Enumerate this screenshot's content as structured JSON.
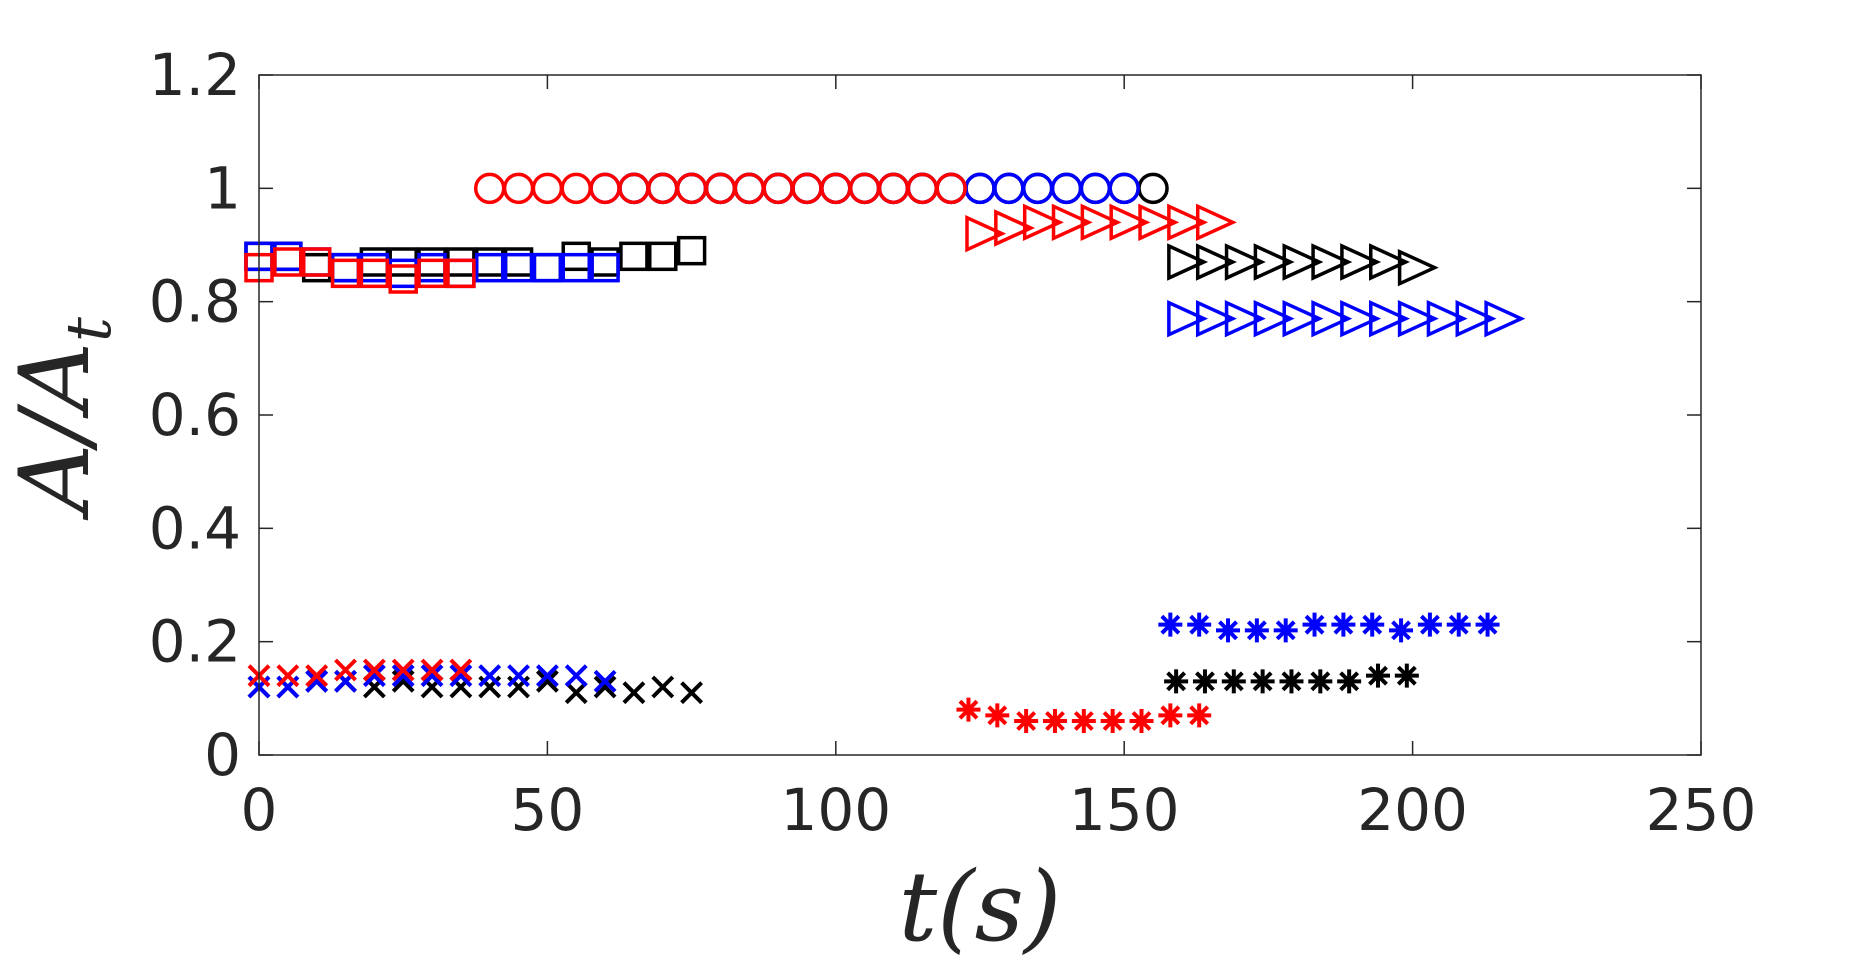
{
  "chart_data": {
    "type": "scatter",
    "title": "",
    "xlabel": "t(s)",
    "ylabel": "A/A",
    "ylabel_subscript": "t",
    "xlim": [
      0,
      250
    ],
    "ylim": [
      0,
      1.2
    ],
    "xticks": [
      0,
      50,
      100,
      150,
      200,
      250
    ],
    "xtick_labels": [
      "0",
      "50",
      "100",
      "150",
      "200",
      "250"
    ],
    "yticks": [
      0,
      0.2,
      0.4,
      0.6,
      0.8,
      1.0,
      1.2
    ],
    "ytick_labels": [
      "0",
      "0.2",
      "0.4",
      "0.6",
      "0.8",
      "1",
      "1.2"
    ],
    "grid": false,
    "colors": {
      "black": "#000000",
      "blue": "#0000ff",
      "red": "#ff0000",
      "axis": "#262626"
    },
    "series": [
      {
        "name": "square-black",
        "marker": "square",
        "color": "#000000",
        "x": [
          0,
          5,
          10,
          15,
          20,
          25,
          30,
          35,
          40,
          45,
          50,
          55,
          60,
          65,
          70,
          75
        ],
        "y": [
          0.88,
          0.88,
          0.86,
          0.86,
          0.87,
          0.87,
          0.87,
          0.87,
          0.87,
          0.87,
          0.86,
          0.88,
          0.87,
          0.88,
          0.88,
          0.89
        ]
      },
      {
        "name": "square-blue",
        "marker": "square",
        "color": "#0000ff",
        "x": [
          0,
          5,
          10,
          15,
          20,
          25,
          30,
          35,
          40,
          45,
          50,
          55,
          60
        ],
        "y": [
          0.88,
          0.88,
          0.87,
          0.86,
          0.86,
          0.85,
          0.86,
          0.85,
          0.86,
          0.86,
          0.86,
          0.86,
          0.86
        ]
      },
      {
        "name": "square-red",
        "marker": "square",
        "color": "#ff0000",
        "x": [
          0,
          5,
          10,
          15,
          20,
          25,
          30,
          35
        ],
        "y": [
          0.86,
          0.87,
          0.87,
          0.85,
          0.85,
          0.84,
          0.85,
          0.85
        ]
      },
      {
        "name": "x-black",
        "marker": "x",
        "color": "#000000",
        "x": [
          0,
          5,
          10,
          15,
          20,
          25,
          30,
          35,
          40,
          45,
          50,
          55,
          60,
          65,
          70,
          75
        ],
        "y": [
          0.12,
          0.12,
          0.13,
          0.13,
          0.12,
          0.13,
          0.12,
          0.12,
          0.12,
          0.12,
          0.13,
          0.11,
          0.12,
          0.11,
          0.12,
          0.11
        ]
      },
      {
        "name": "x-blue",
        "marker": "x",
        "color": "#0000ff",
        "x": [
          0,
          5,
          10,
          15,
          20,
          25,
          30,
          35,
          40,
          45,
          50,
          55,
          60
        ],
        "y": [
          0.12,
          0.12,
          0.13,
          0.13,
          0.14,
          0.14,
          0.14,
          0.14,
          0.14,
          0.14,
          0.14,
          0.14,
          0.13
        ]
      },
      {
        "name": "x-red",
        "marker": "x",
        "color": "#ff0000",
        "x": [
          0,
          5,
          10,
          15,
          20,
          25,
          30,
          35
        ],
        "y": [
          0.14,
          0.14,
          0.14,
          0.15,
          0.15,
          0.15,
          0.15,
          0.15
        ]
      },
      {
        "name": "circle-black",
        "marker": "circle",
        "color": "#000000",
        "x": [
          65,
          70,
          75,
          80,
          85,
          90,
          95,
          100,
          105,
          110,
          115,
          120,
          125,
          130,
          135,
          140,
          145,
          150,
          155
        ],
        "y": [
          1,
          1,
          1,
          1,
          1,
          1,
          1,
          1,
          1,
          1,
          1,
          1,
          1,
          1,
          1,
          1,
          1,
          1,
          1
        ]
      },
      {
        "name": "circle-blue",
        "marker": "circle",
        "color": "#0000ff",
        "x": [
          60,
          65,
          70,
          75,
          80,
          85,
          90,
          95,
          100,
          105,
          110,
          115,
          120,
          125,
          130,
          135,
          140,
          145,
          150
        ],
        "y": [
          1,
          1,
          1,
          1,
          1,
          1,
          1,
          1,
          1,
          1,
          1,
          1,
          1,
          1,
          1,
          1,
          1,
          1,
          1
        ]
      },
      {
        "name": "circle-red",
        "marker": "circle",
        "color": "#ff0000",
        "x": [
          40,
          45,
          50,
          55,
          60,
          65,
          70,
          75,
          80,
          85,
          90,
          95,
          100,
          105,
          110,
          115,
          120
        ],
        "y": [
          1,
          1,
          1,
          1,
          1,
          1,
          1,
          1,
          1,
          1,
          1,
          1,
          1,
          1,
          1,
          1,
          1
        ]
      },
      {
        "name": "triangle-red",
        "marker": "triangle-right",
        "color": "#ff0000",
        "x": [
          125,
          130,
          135,
          140,
          145,
          150,
          155,
          160,
          165
        ],
        "y": [
          0.92,
          0.93,
          0.94,
          0.94,
          0.94,
          0.94,
          0.94,
          0.94,
          0.94
        ]
      },
      {
        "name": "triangle-black",
        "marker": "triangle-right",
        "color": "#000000",
        "x": [
          160,
          165,
          170,
          175,
          180,
          185,
          190,
          195,
          200
        ],
        "y": [
          0.87,
          0.87,
          0.87,
          0.87,
          0.87,
          0.87,
          0.87,
          0.87,
          0.86
        ]
      },
      {
        "name": "triangle-blue",
        "marker": "triangle-right",
        "color": "#0000ff",
        "x": [
          160,
          165,
          170,
          175,
          180,
          185,
          190,
          195,
          200,
          205,
          210,
          215
        ],
        "y": [
          0.77,
          0.77,
          0.77,
          0.77,
          0.77,
          0.77,
          0.77,
          0.77,
          0.77,
          0.77,
          0.77,
          0.77
        ]
      },
      {
        "name": "asterisk-red",
        "marker": "asterisk",
        "color": "#ff0000",
        "x": [
          123,
          128,
          133,
          138,
          143,
          148,
          153,
          158,
          163
        ],
        "y": [
          0.08,
          0.07,
          0.06,
          0.06,
          0.06,
          0.06,
          0.06,
          0.07,
          0.07
        ]
      },
      {
        "name": "asterisk-blue",
        "marker": "asterisk",
        "color": "#0000ff",
        "x": [
          158,
          163,
          168,
          173,
          178,
          183,
          188,
          193,
          198,
          203,
          208,
          213
        ],
        "y": [
          0.23,
          0.23,
          0.22,
          0.22,
          0.22,
          0.23,
          0.23,
          0.23,
          0.22,
          0.23,
          0.23,
          0.23
        ]
      },
      {
        "name": "asterisk-black",
        "marker": "asterisk",
        "color": "#000000",
        "x": [
          159,
          164,
          169,
          174,
          179,
          184,
          189,
          194,
          199
        ],
        "y": [
          0.13,
          0.13,
          0.13,
          0.13,
          0.13,
          0.13,
          0.13,
          0.14,
          0.14
        ]
      }
    ]
  }
}
